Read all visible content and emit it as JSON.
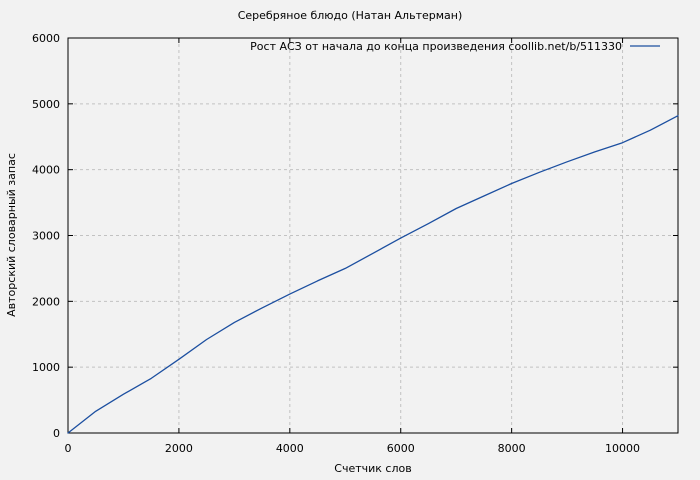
{
  "page": {
    "background_color": "#f2f2f2"
  },
  "chart_data": {
    "type": "line",
    "title": "Серебряное блюдо (Натан Альтерман)",
    "xlabel": "Счетчик слов",
    "ylabel": "Авторский словарный запас",
    "xlim": [
      0,
      11000
    ],
    "ylim": [
      0,
      6000
    ],
    "xticks": [
      0,
      2000,
      4000,
      6000,
      8000,
      10000
    ],
    "yticks": [
      0,
      1000,
      2000,
      3000,
      4000,
      5000,
      6000
    ],
    "grid": true,
    "grid_style": "dashed",
    "legend_position": "top-right-inside",
    "legend": {
      "label": "Рост АСЗ от начала до конца произведения coollib.net/b/511330"
    },
    "series": [
      {
        "name": "Рост АСЗ",
        "color": "#1c4fa0",
        "x": [
          0,
          500,
          1000,
          1500,
          2000,
          2500,
          3000,
          3500,
          4000,
          4500,
          5000,
          5500,
          6000,
          6500,
          7000,
          7500,
          8000,
          8500,
          9000,
          9500,
          10000,
          10500,
          11000
        ],
        "y": [
          0,
          330,
          590,
          830,
          1120,
          1420,
          1680,
          1900,
          2110,
          2310,
          2500,
          2730,
          2960,
          3180,
          3410,
          3600,
          3790,
          3960,
          4120,
          4270,
          4410,
          4600,
          4820
        ]
      }
    ],
    "colors": {
      "background": "#f2f2f2",
      "grid": "#c2c2c2",
      "axis": "#000000",
      "text": "#000000",
      "line": "#1c4fa0"
    }
  }
}
